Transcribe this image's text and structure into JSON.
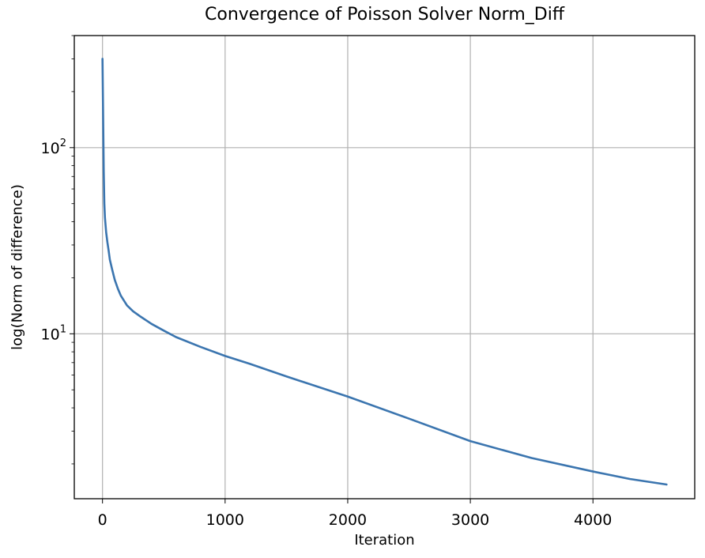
{
  "chart_data": {
    "type": "line",
    "title": "Convergence of Poisson Solver Norm_Diff",
    "xlabel": "Iteration",
    "ylabel": "log(Norm of difference)",
    "yscale": "log",
    "xlim": [
      -230,
      4830
    ],
    "ylim": [
      1.3,
      400
    ],
    "xticks": [
      0,
      1000,
      2000,
      3000,
      4000
    ],
    "xtick_labels": [
      "0",
      "1000",
      "2000",
      "3000",
      "4000"
    ],
    "yticks": [
      {
        "base": "10",
        "exp": "1",
        "value": 10
      },
      {
        "base": "10",
        "exp": "2",
        "value": 100
      }
    ],
    "grid": true,
    "line_color": "#3b75af",
    "series": [
      {
        "x": [
          0,
          5,
          10,
          15,
          20,
          30,
          40,
          50,
          60,
          80,
          100,
          125,
          150,
          200,
          250,
          300,
          400,
          500,
          600,
          800,
          1000,
          1200,
          1500,
          2000,
          2500,
          3000,
          3500,
          4000,
          4300,
          4600
        ],
        "y": [
          300,
          150,
          75,
          50,
          42,
          35,
          31,
          28,
          25,
          22,
          19.5,
          17.5,
          16,
          14.2,
          13.2,
          12.5,
          11.3,
          10.4,
          9.6,
          8.5,
          7.6,
          6.9,
          5.9,
          4.6,
          3.5,
          2.65,
          2.15,
          1.82,
          1.66,
          1.55
        ]
      }
    ]
  }
}
